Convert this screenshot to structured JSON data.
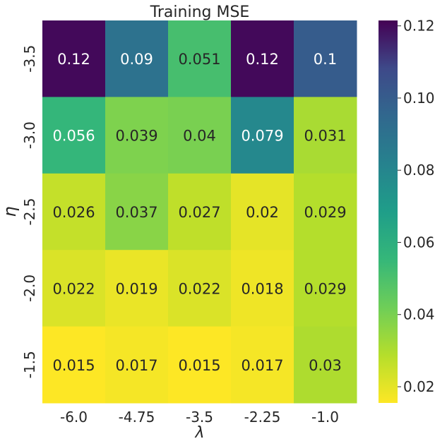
{
  "chart_data": {
    "type": "heatmap",
    "title": "Training MSE",
    "xlabel": "λ",
    "ylabel": "η",
    "x_categories": [
      "-6.0",
      "-4.75",
      "-3.5",
      "-2.25",
      "-1.0"
    ],
    "y_categories": [
      "-3.5",
      "-3.0",
      "-2.5",
      "-2.0",
      "-1.5"
    ],
    "values": [
      [
        0.12,
        0.09,
        0.051,
        0.12,
        0.1
      ],
      [
        0.056,
        0.039,
        0.04,
        0.079,
        0.031
      ],
      [
        0.026,
        0.037,
        0.027,
        0.02,
        0.029
      ],
      [
        0.022,
        0.019,
        0.022,
        0.018,
        0.029
      ],
      [
        0.015,
        0.017,
        0.015,
        0.017,
        0.03
      ]
    ],
    "colormap": "viridis_r",
    "colorbar": {
      "range": [
        0.0155,
        0.1215
      ],
      "ticks": [
        0.02,
        0.04,
        0.06,
        0.08,
        0.1,
        0.12
      ],
      "tick_labels": [
        "0.02",
        "0.04",
        "0.06",
        "0.08",
        "0.10",
        "0.12"
      ]
    }
  }
}
